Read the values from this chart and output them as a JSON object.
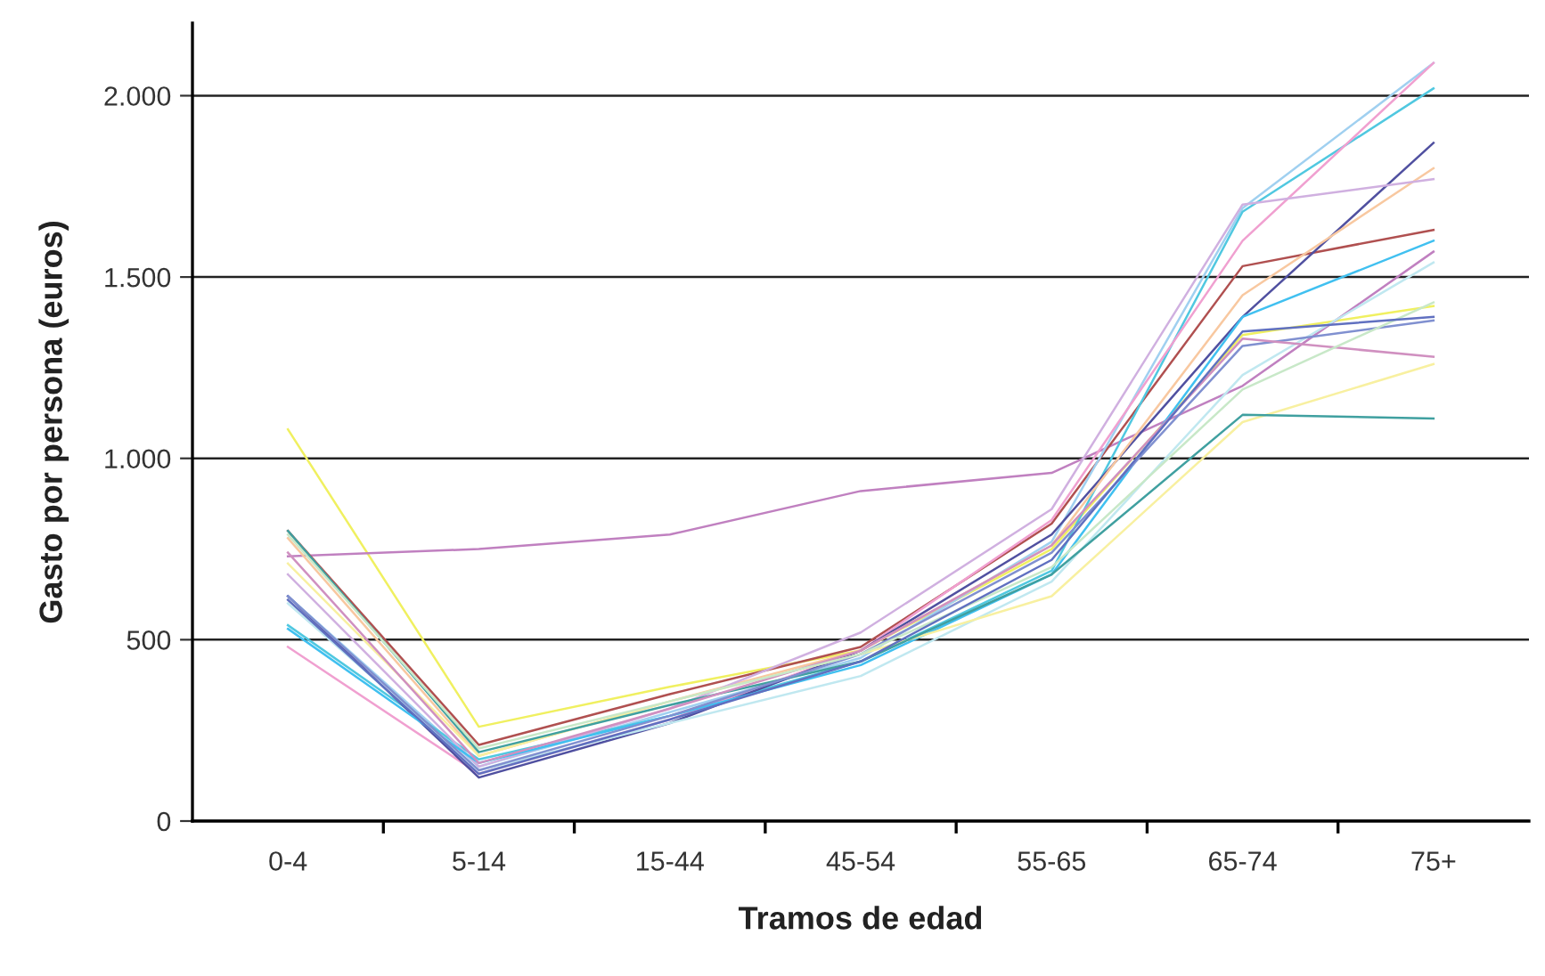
{
  "chart_data": {
    "type": "line",
    "xlabel": "Tramos de edad",
    "ylabel": "Gasto por persona (euros)",
    "categories": [
      "0-4",
      "5-14",
      "15-44",
      "45-54",
      "55-65",
      "65-74",
      "75+"
    ],
    "ylim": [
      0,
      2200
    ],
    "yticks": [
      {
        "value": 0,
        "label": "0"
      },
      {
        "value": 500,
        "label": "500"
      },
      {
        "value": 1000,
        "label": "1.000"
      },
      {
        "value": 1500,
        "label": "1.500"
      },
      {
        "value": 2000,
        "label": "2.000"
      }
    ],
    "grid": "y",
    "legend": false,
    "marker": "none",
    "line_style": "solid",
    "series": [
      {
        "color": "#f0f060",
        "values": [
          1080,
          260,
          370,
          470,
          750,
          1340,
          1420
        ]
      },
      {
        "color": "#c080c0",
        "values": [
          730,
          750,
          790,
          910,
          960,
          1200,
          1570
        ]
      },
      {
        "color": "#b05050",
        "values": [
          800,
          210,
          350,
          480,
          820,
          1530,
          1630
        ]
      },
      {
        "color": "#a0d0f0",
        "values": [
          620,
          150,
          300,
          450,
          770,
          1690,
          2090
        ]
      },
      {
        "color": "#50c8e0",
        "values": [
          540,
          170,
          290,
          440,
          690,
          1680,
          2020
        ]
      },
      {
        "color": "#f0a0d0",
        "values": [
          480,
          130,
          280,
          470,
          830,
          1600,
          2090
        ]
      },
      {
        "color": "#5050a0",
        "values": [
          620,
          120,
          270,
          470,
          790,
          1390,
          1870
        ]
      },
      {
        "color": "#f8c8a0",
        "values": [
          780,
          180,
          330,
          470,
          760,
          1450,
          1800
        ]
      },
      {
        "color": "#d0b0e0",
        "values": [
          680,
          150,
          310,
          520,
          860,
          1700,
          1770
        ]
      },
      {
        "color": "#40c0f0",
        "values": [
          530,
          160,
          290,
          430,
          680,
          1390,
          1600
        ]
      },
      {
        "color": "#c0e8f0",
        "values": [
          600,
          140,
          270,
          400,
          660,
          1230,
          1540
        ]
      },
      {
        "color": "#f8f0a0",
        "values": [
          710,
          180,
          330,
          460,
          620,
          1100,
          1260
        ]
      },
      {
        "color": "#40a0a0",
        "values": [
          800,
          190,
          320,
          440,
          680,
          1120,
          1110
        ]
      },
      {
        "color": "#8090d0",
        "values": [
          620,
          140,
          290,
          460,
          740,
          1310,
          1380
        ]
      },
      {
        "color": "#d090c0",
        "values": [
          740,
          160,
          310,
          470,
          760,
          1330,
          1280
        ]
      },
      {
        "color": "#c8e8c8",
        "values": [
          790,
          200,
          330,
          460,
          700,
          1190,
          1430
        ]
      },
      {
        "color": "#6070c0",
        "values": [
          610,
          130,
          280,
          440,
          720,
          1350,
          1390
        ]
      }
    ]
  }
}
